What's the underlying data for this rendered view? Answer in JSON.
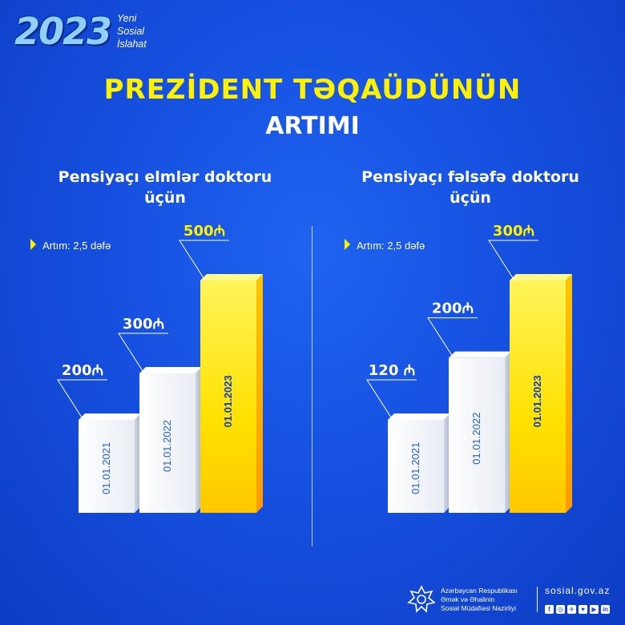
{
  "brand": {
    "year": "2023",
    "tagline": [
      "Yeni",
      "Sosial",
      "İslahat"
    ]
  },
  "title_line1": "PREZİDENT TƏQAÜDÜNÜN",
  "title_line2": "ARTIMI",
  "colors": {
    "background": "#1650e0",
    "accent_yellow": "#fff200",
    "bar_white": "#f4f6fa",
    "bar_yellow": "#ffd400"
  },
  "chart_data": [
    {
      "type": "bar",
      "title": "Pensiyaçı elmlər doktoru üçün",
      "note": "Artım: 2,5 dəfə",
      "categories": [
        "01.01.2021",
        "01.01.2022",
        "01.01.2023"
      ],
      "values": [
        200,
        300,
        500
      ],
      "value_labels": [
        "200₼",
        "300₼",
        "500₼"
      ],
      "highlight_index": 2
    },
    {
      "type": "bar",
      "title": "Pensiyaçı fəlsəfə doktoru üçün",
      "note": "Artım: 2,5 dəfə",
      "categories": [
        "01.01.2021",
        "01.01.2022",
        "01.01.2023"
      ],
      "values": [
        120,
        200,
        300
      ],
      "value_labels": [
        "120 ₼",
        "200₼",
        "300₼"
      ],
      "highlight_index": 2
    }
  ],
  "footer": {
    "ministry_lines": [
      "Azərbaycan Respublikası",
      "Əmək və Əhalinin",
      "Sosial Müdafiəsi Nazirliyi"
    ],
    "website": "sosial.gov.az",
    "socials": [
      "f",
      "◎",
      "✈",
      "♥",
      "▶",
      "in"
    ],
    "social_icons": [
      "facebook-icon",
      "instagram-icon",
      "telegram-icon",
      "twitter-icon",
      "youtube-icon",
      "linkedin-icon"
    ]
  }
}
